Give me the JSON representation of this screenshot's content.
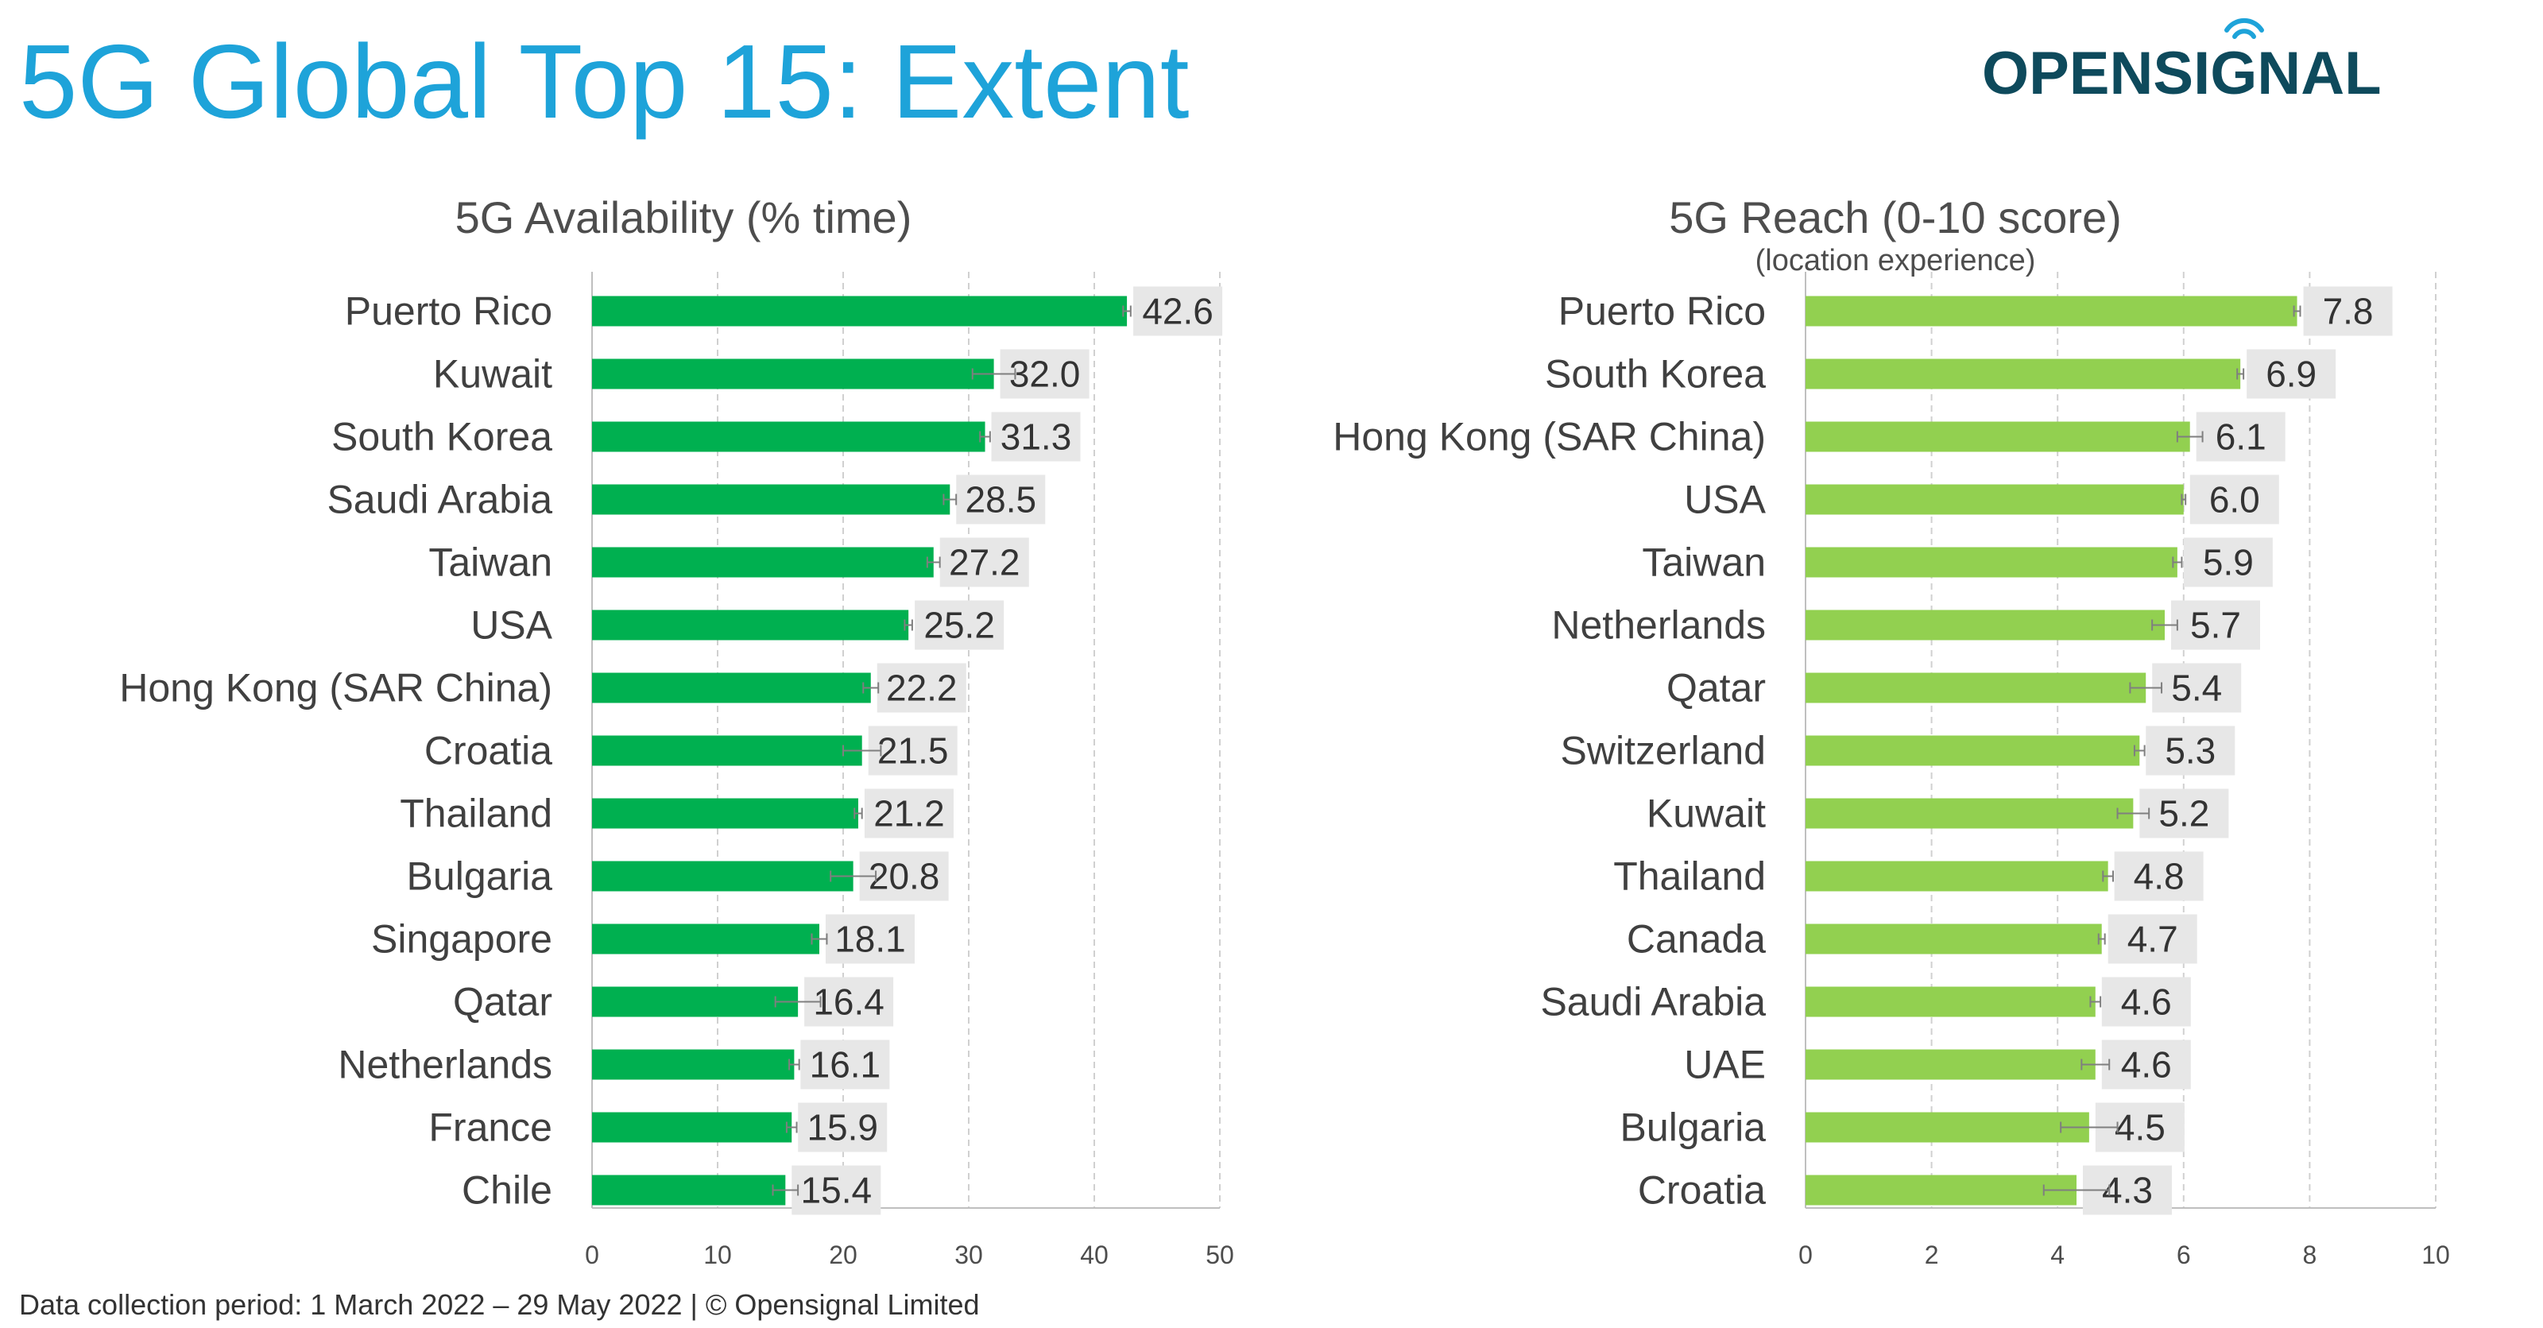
{
  "header": {
    "title": "5G Global Top 15: Extent",
    "logo_text": "OPENSIGNAL"
  },
  "footer": {
    "text": "Data collection period: 1 March 2022 – 29 May 2022 |  © Opensignal Limited"
  },
  "colors": {
    "title": "#1ea3d9",
    "logo": "#0e4a5c",
    "availability_bar": "#00b050",
    "reach_bar": "#92d050",
    "label_box": "#e7e7e7",
    "gridline": "#d0d0d0"
  },
  "chart_data": [
    {
      "type": "bar",
      "orientation": "horizontal",
      "title": "5G Availability (% time)",
      "subtitle": "",
      "categories": [
        "Puerto Rico",
        "Kuwait",
        "South Korea",
        "Saudi Arabia",
        "Taiwan",
        "USA",
        "Hong Kong (SAR China)",
        "Croatia",
        "Thailand",
        "Bulgaria",
        "Singapore",
        "Qatar",
        "Netherlands",
        "France",
        "Chile"
      ],
      "values": [
        42.6,
        32.0,
        31.3,
        28.5,
        27.2,
        25.2,
        22.2,
        21.5,
        21.2,
        20.8,
        18.1,
        16.4,
        16.1,
        15.9,
        15.4
      ],
      "value_labels": [
        "42.6",
        "32.0",
        "31.3",
        "28.5",
        "27.2",
        "25.2",
        "22.2",
        "21.5",
        "21.2",
        "20.8",
        "18.1",
        "16.4",
        "16.1",
        "15.9",
        "15.4"
      ],
      "error_low": [
        42.3,
        30.3,
        30.9,
        28.0,
        26.7,
        24.9,
        21.6,
        20.0,
        20.9,
        19.0,
        17.5,
        14.6,
        15.7,
        15.5,
        14.4
      ],
      "error_high": [
        42.9,
        33.7,
        31.7,
        29.0,
        27.7,
        25.5,
        22.8,
        23.0,
        21.5,
        22.6,
        18.7,
        18.2,
        16.5,
        16.3,
        16.4
      ],
      "xlim": [
        0,
        50
      ],
      "xticks": [
        "0",
        "10",
        "20",
        "30",
        "40",
        "50"
      ],
      "grid": true,
      "bar_color": "#00b050"
    },
    {
      "type": "bar",
      "orientation": "horizontal",
      "title": "5G Reach (0-10 score)",
      "subtitle": "(location experience)",
      "categories": [
        "Puerto Rico",
        "South Korea",
        "Hong Kong (SAR China)",
        "USA",
        "Taiwan",
        "Netherlands",
        "Qatar",
        "Switzerland",
        "Kuwait",
        "Thailand",
        "Canada",
        "Saudi Arabia",
        "UAE",
        "Bulgaria",
        "Croatia"
      ],
      "values": [
        7.8,
        6.9,
        6.1,
        6.0,
        5.9,
        5.7,
        5.4,
        5.3,
        5.2,
        4.8,
        4.7,
        4.6,
        4.6,
        4.5,
        4.3
      ],
      "value_labels": [
        "7.8",
        "6.9",
        "6.1",
        "6.0",
        "5.9",
        "5.7",
        "5.4",
        "5.3",
        "5.2",
        "4.8",
        "4.7",
        "4.6",
        "4.6",
        "4.5",
        "4.3"
      ],
      "error_low": [
        7.75,
        6.85,
        5.9,
        5.97,
        5.83,
        5.5,
        5.15,
        5.22,
        4.95,
        4.72,
        4.65,
        4.52,
        4.38,
        4.05,
        3.78
      ],
      "error_high": [
        7.85,
        6.95,
        6.3,
        6.03,
        5.97,
        5.9,
        5.65,
        5.38,
        5.45,
        4.88,
        4.75,
        4.68,
        4.82,
        4.95,
        4.82
      ],
      "xlim": [
        0,
        10
      ],
      "xticks": [
        "0",
        "2",
        "4",
        "6",
        "8",
        "10"
      ],
      "grid": true,
      "bar_color": "#92d050"
    }
  ]
}
